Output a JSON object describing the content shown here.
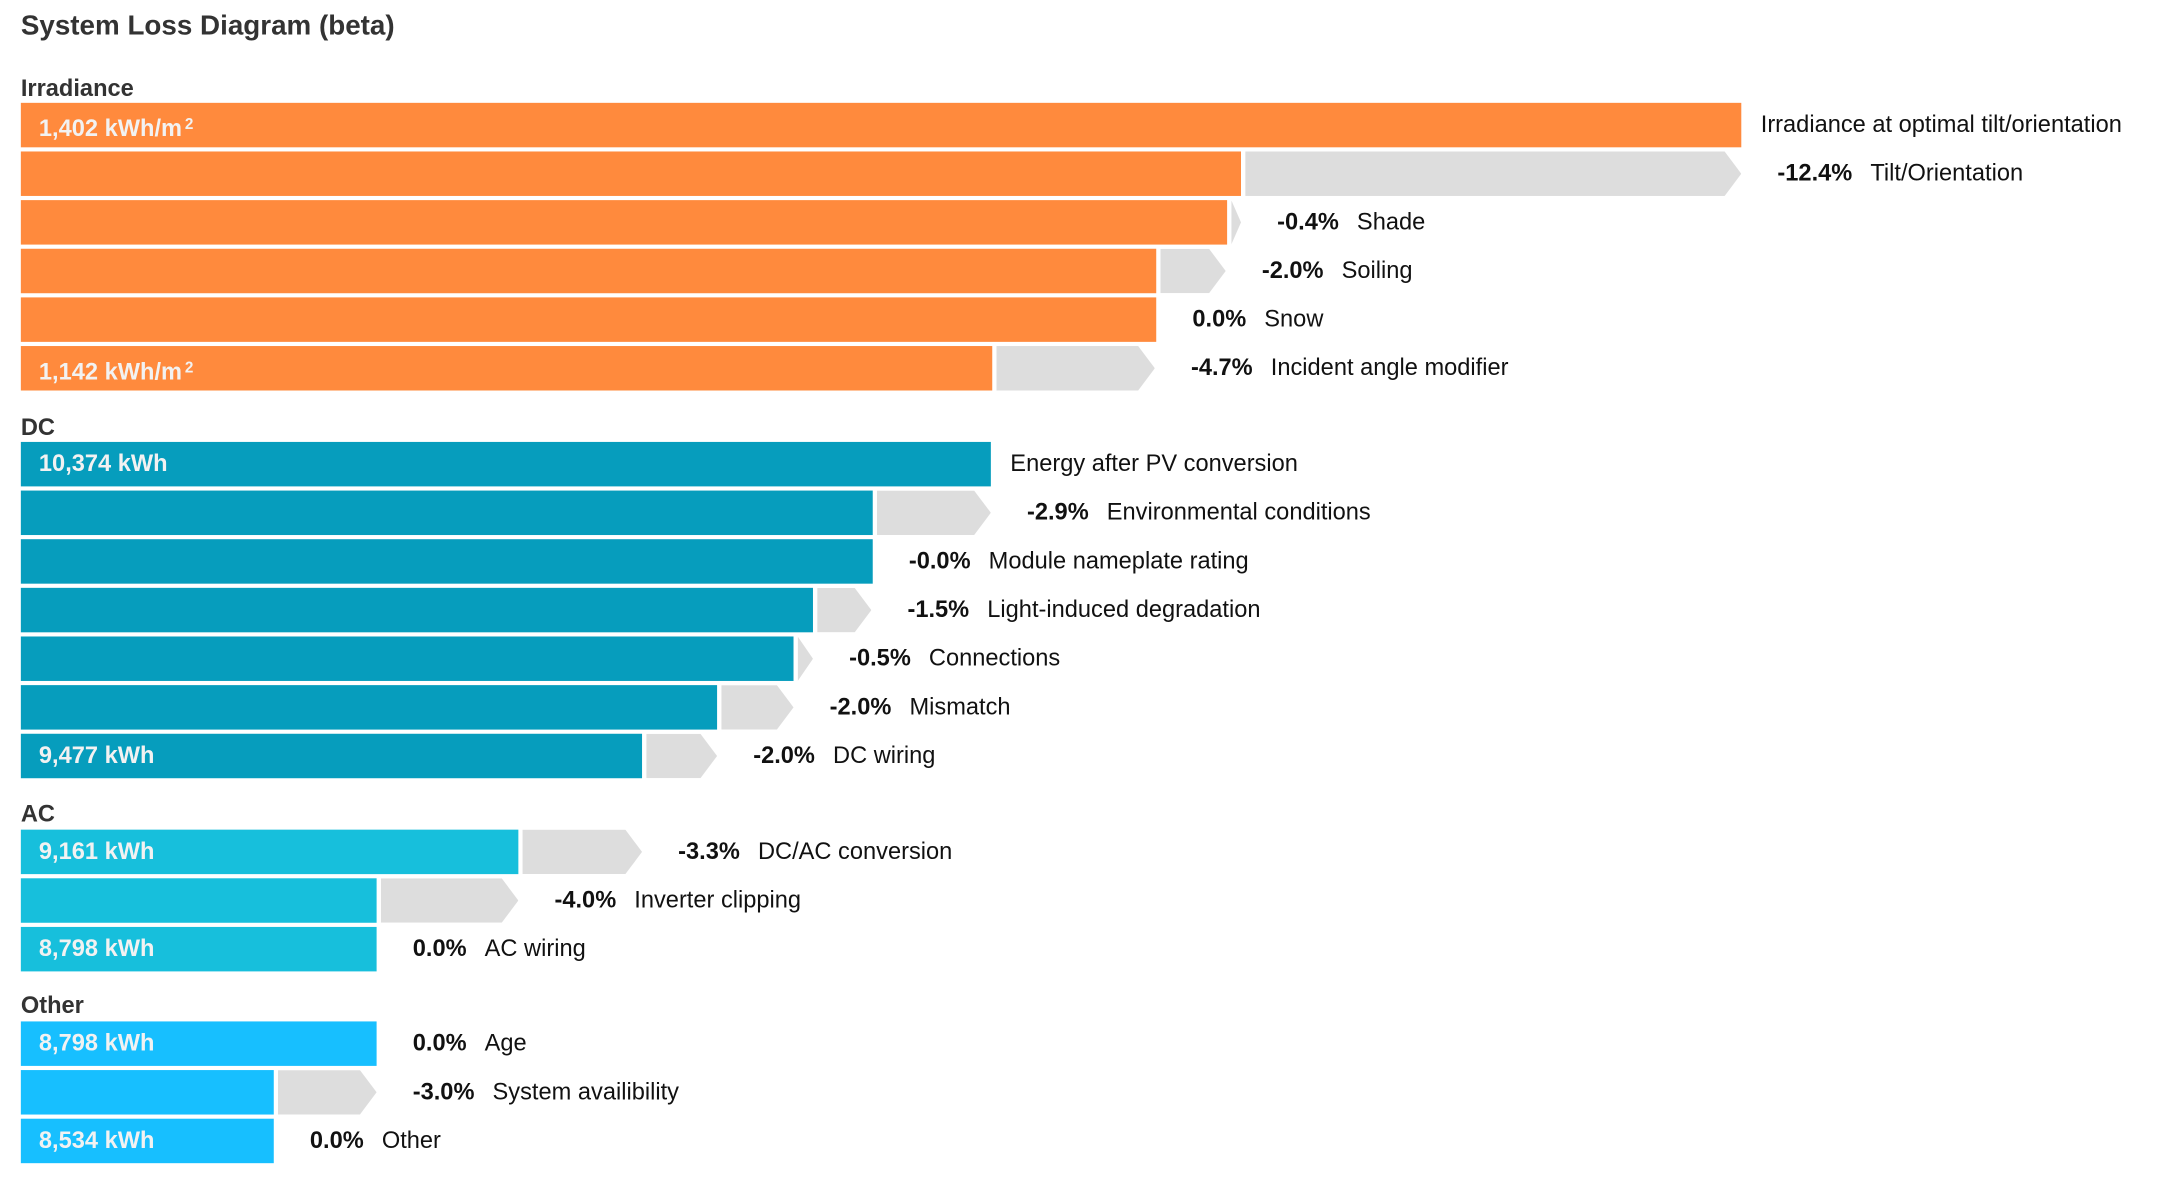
{
  "chart_data": {
    "type": "bar",
    "title": "System Loss Diagram (beta)",
    "colors": {
      "Irradiance": "#FF8A3D",
      "DC": "#069DBD",
      "AC": "#17BFDC",
      "Other": "#17BFFF",
      "loss": "#DDDDDD"
    },
    "groups": [
      {
        "name": "Irradiance",
        "rows": [
          {
            "value": "1,402 kWh/m",
            "unit_sup": "2",
            "pct": "",
            "label": "Irradiance at optimal tilt/orientation"
          },
          {
            "value": "",
            "pct": "-12.4%",
            "label": "Tilt/Orientation"
          },
          {
            "value": "",
            "pct": "-0.4%",
            "label": "Shade"
          },
          {
            "value": "",
            "pct": "-2.0%",
            "label": "Soiling"
          },
          {
            "value": "",
            "pct": "0.0%",
            "label": "Snow"
          },
          {
            "value": "1,142 kWh/m",
            "unit_sup": "2",
            "pct": "-4.7%",
            "label": "Incident angle modifier"
          }
        ]
      },
      {
        "name": "DC",
        "rows": [
          {
            "value": "10,374 kWh",
            "pct": "",
            "label": "Energy after PV conversion"
          },
          {
            "value": "",
            "pct": "-2.9%",
            "label": "Environmental conditions"
          },
          {
            "value": "",
            "pct": "-0.0%",
            "label": "Module nameplate rating"
          },
          {
            "value": "",
            "pct": "-1.5%",
            "label": "Light-induced degradation"
          },
          {
            "value": "",
            "pct": "-0.5%",
            "label": "Connections"
          },
          {
            "value": "",
            "pct": "-2.0%",
            "label": "Mismatch"
          },
          {
            "value": "9,477 kWh",
            "pct": "-2.0%",
            "label": "DC wiring"
          }
        ]
      },
      {
        "name": "AC",
        "rows": [
          {
            "value": "9,161 kWh",
            "pct": "-3.3%",
            "label": "DC/AC conversion"
          },
          {
            "value": "",
            "pct": "-4.0%",
            "label": "Inverter clipping"
          },
          {
            "value": "8,798 kWh",
            "pct": "0.0%",
            "label": "AC wiring"
          }
        ]
      },
      {
        "name": "Other",
        "rows": [
          {
            "value": "8,798 kWh",
            "pct": "0.0%",
            "label": "Age"
          },
          {
            "value": "",
            "pct": "-3.0%",
            "label": "System availibility"
          },
          {
            "value": "8,534 kWh",
            "pct": "0.0%",
            "label": "Other"
          }
        ]
      }
    ]
  }
}
